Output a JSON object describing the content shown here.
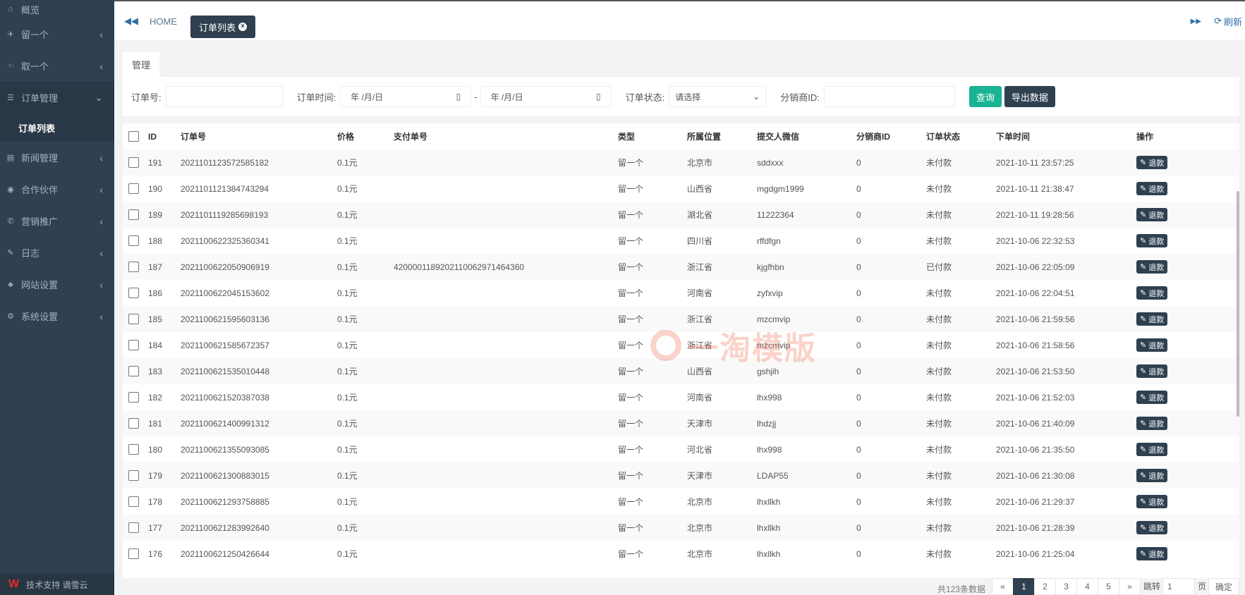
{
  "sidebar": {
    "top_item": {
      "label": "概览",
      "icon": "home-icon"
    },
    "items": [
      {
        "label": "留一个",
        "icon": "paper-plane-icon"
      },
      {
        "label": "取一个",
        "icon": "hand-icon"
      },
      {
        "label": "订单管理",
        "icon": "list-icon",
        "open": true
      },
      {
        "label": "新闻管理",
        "icon": "newspaper-icon"
      },
      {
        "label": "合作伙伴",
        "icon": "eye-icon"
      },
      {
        "label": "营销推广",
        "icon": "bullhorn-icon"
      },
      {
        "label": "日志",
        "icon": "edit-icon"
      },
      {
        "label": "网站设置",
        "icon": "sitemap-icon"
      },
      {
        "label": "系统设置",
        "icon": "gear-icon"
      }
    ],
    "active_sub": "订单列表",
    "footer": "技术支持 谪雪云",
    "footer_logo": "W"
  },
  "topbar": {
    "home": "HOME",
    "active_tab": "订单列表",
    "refresh": "刷新"
  },
  "panel_tab": "管理",
  "filters": {
    "order_no_label": "订单号:",
    "order_time_label": "订单时间:",
    "date_placeholder": "年 /月/日",
    "dash": "-",
    "status_label": "订单状态:",
    "status_value": "请选择",
    "dist_label": "分销商ID:",
    "query": "查询",
    "export": "导出数据"
  },
  "colors": {
    "sidebar": "#2f4050",
    "query": "#1ab394",
    "accent": "#2f6fa5"
  },
  "table": {
    "headers": [
      "ID",
      "订单号",
      "价格",
      "支付单号",
      "类型",
      "所属位置",
      "提交人微信",
      "分销商ID",
      "订单状态",
      "下单时间",
      "操作"
    ],
    "action_label": "退款"
  },
  "rows": [
    [
      "191",
      "2021101123572585182",
      "0.1元",
      "",
      "留一个",
      "北京市",
      "sddxxx",
      "0",
      "未付款",
      "2021-10-11 23:57:25"
    ],
    [
      "190",
      "2021101121384743294",
      "0.1元",
      "",
      "留一个",
      "山西省",
      "mgdgm1999",
      "0",
      "未付款",
      "2021-10-11 21:38:47"
    ],
    [
      "189",
      "2021101119285698193",
      "0.1元",
      "",
      "留一个",
      "湖北省",
      "11222364",
      "0",
      "未付款",
      "2021-10-11 19:28:56"
    ],
    [
      "188",
      "2021100622325360341",
      "0.1元",
      "",
      "留一个",
      "四川省",
      "rffdfgn",
      "0",
      "未付款",
      "2021-10-06 22:32:53"
    ],
    [
      "187",
      "2021100622050906919",
      "0.1元",
      "4200001189202110062971464360",
      "留一个",
      "浙江省",
      "kjgfhbn",
      "0",
      "已付款",
      "2021-10-06 22:05:09"
    ],
    [
      "186",
      "2021100622045153602",
      "0.1元",
      "",
      "留一个",
      "河南省",
      "zyfxvip",
      "0",
      "未付款",
      "2021-10-06 22:04:51"
    ],
    [
      "185",
      "2021100621595603136",
      "0.1元",
      "",
      "留一个",
      "浙江省",
      "mzcmvip",
      "0",
      "未付款",
      "2021-10-06 21:59:56"
    ],
    [
      "184",
      "2021100621585672357",
      "0.1元",
      "",
      "留一个",
      "浙江省",
      "mzcmvip",
      "0",
      "未付款",
      "2021-10-06 21:58:56"
    ],
    [
      "183",
      "2021100621535010448",
      "0.1元",
      "",
      "留一个",
      "山西省",
      "gshjih",
      "0",
      "未付款",
      "2021-10-06 21:53:50"
    ],
    [
      "182",
      "2021100621520387038",
      "0.1元",
      "",
      "留一个",
      "河南省",
      "lhx998",
      "0",
      "未付款",
      "2021-10-06 21:52:03"
    ],
    [
      "181",
      "2021100621400991312",
      "0.1元",
      "",
      "留一个",
      "天津市",
      "lhdzjj",
      "0",
      "未付款",
      "2021-10-06 21:40:09"
    ],
    [
      "180",
      "2021100621355093085",
      "0.1元",
      "",
      "留一个",
      "河北省",
      "lhx998",
      "0",
      "未付款",
      "2021-10-06 21:35:50"
    ],
    [
      "179",
      "2021100621300883015",
      "0.1元",
      "",
      "留一个",
      "天津市",
      "LDAP55",
      "0",
      "未付款",
      "2021-10-06 21:30:08"
    ],
    [
      "178",
      "2021100621293758885",
      "0.1元",
      "",
      "留一个",
      "北京市",
      "lhxllkh",
      "0",
      "未付款",
      "2021-10-06 21:29:37"
    ],
    [
      "177",
      "2021100621283992640",
      "0.1元",
      "",
      "留一个",
      "北京市",
      "lhxllkh",
      "0",
      "未付款",
      "2021-10-06 21:28:39"
    ],
    [
      "176",
      "2021100621250426644",
      "0.1元",
      "",
      "留一个",
      "北京市",
      "lhxllkh",
      "0",
      "未付款",
      "2021-10-06 21:25:04"
    ]
  ],
  "pagination": {
    "total": "共123条数据",
    "prev": "«",
    "pages": [
      "1",
      "2",
      "3",
      "4",
      "5"
    ],
    "current": "1",
    "next": "»",
    "jump_label": "跳转",
    "jump_value": "1",
    "page_unit": "页",
    "confirm": "确定"
  },
  "watermark": "一淘模版"
}
